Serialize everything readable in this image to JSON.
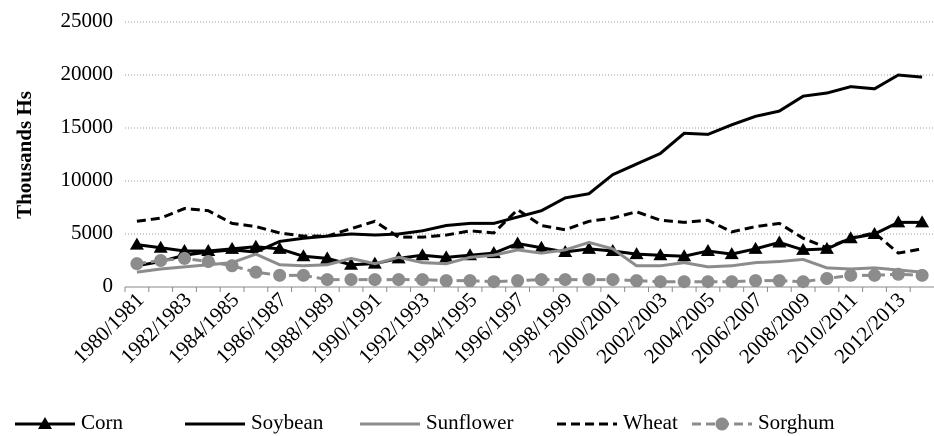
{
  "chart_data": {
    "type": "line",
    "y_label": "Thousands Hs",
    "categories": [
      "1980/1981",
      null,
      "1982/1983",
      null,
      "1984/1985",
      null,
      "1986/1987",
      null,
      "1988/1989",
      null,
      "1990/1991",
      null,
      "1992/1993",
      null,
      "1994/1995",
      null,
      "1996/1997",
      null,
      "1998/1999",
      null,
      "2000/2001",
      null,
      "2002/2003",
      null,
      "2004/2005",
      null,
      "2006/2007",
      null,
      "2008/2009",
      null,
      "2010/2011",
      null,
      "2012/2013",
      null
    ],
    "series": [
      {
        "name": "Corn",
        "color": "#000000",
        "dash": "solid",
        "marker": "triangle",
        "values": [
          4000,
          3700,
          3400,
          3400,
          3600,
          3800,
          3600,
          2900,
          2700,
          2100,
          2200,
          2700,
          3000,
          2800,
          3000,
          3200,
          4100,
          3700,
          3300,
          3600,
          3400,
          3100,
          3000,
          2900,
          3400,
          3100,
          3600,
          4200,
          3500,
          3600,
          4600,
          5000,
          6100,
          6100
        ]
      },
      {
        "name": "Soybean",
        "color": "#000000",
        "dash": "solid",
        "marker": "none",
        "values": [
          2000,
          2400,
          3000,
          3300,
          3500,
          3300,
          4300,
          4600,
          4800,
          5000,
          4900,
          5000,
          5300,
          5800,
          6000,
          6000,
          6600,
          7200,
          8400,
          8800,
          10600,
          11600,
          12600,
          14500,
          14400,
          15300,
          16100,
          16600,
          18000,
          18300,
          18900,
          18700,
          20000,
          19800
        ]
      },
      {
        "name": "Sunflower",
        "color": "#8c8c8c",
        "dash": "solid",
        "marker": "none",
        "values": [
          1400,
          1700,
          1900,
          2100,
          2300,
          3100,
          2100,
          2000,
          2100,
          2700,
          2200,
          2800,
          2300,
          2200,
          2800,
          3000,
          3500,
          3200,
          3500,
          4200,
          3600,
          2000,
          2000,
          2300,
          1900,
          2000,
          2300,
          2400,
          2600,
          1800,
          1700,
          1800,
          1600,
          1400
        ]
      },
      {
        "name": "Wheat",
        "color": "#000000",
        "dash": "dashed",
        "marker": "none",
        "values": [
          6200,
          6500,
          7400,
          7200,
          6000,
          5700,
          5100,
          4800,
          4800,
          5500,
          6200,
          4700,
          4700,
          4900,
          5300,
          5100,
          7300,
          5800,
          5400,
          6200,
          6500,
          7100,
          6300,
          6100,
          6300,
          5200,
          5700,
          6000,
          4600,
          3700,
          4600,
          5100,
          3200,
          3600
        ]
      },
      {
        "name": "Sorghum",
        "color": "#8c8c8c",
        "dash": "dashed",
        "marker": "circle",
        "values": [
          2200,
          2500,
          2700,
          2400,
          2000,
          1400,
          1100,
          1100,
          700,
          700,
          700,
          700,
          700,
          600,
          600,
          500,
          600,
          700,
          700,
          700,
          700,
          600,
          500,
          500,
          500,
          500,
          600,
          600,
          500,
          800,
          1100,
          1100,
          1200,
          1100
        ]
      }
    ],
    "ylim": [
      0,
      25000
    ],
    "yticks": [
      0,
      5000,
      10000,
      15000,
      20000,
      25000
    ],
    "grid": true,
    "legend": "bottom"
  }
}
